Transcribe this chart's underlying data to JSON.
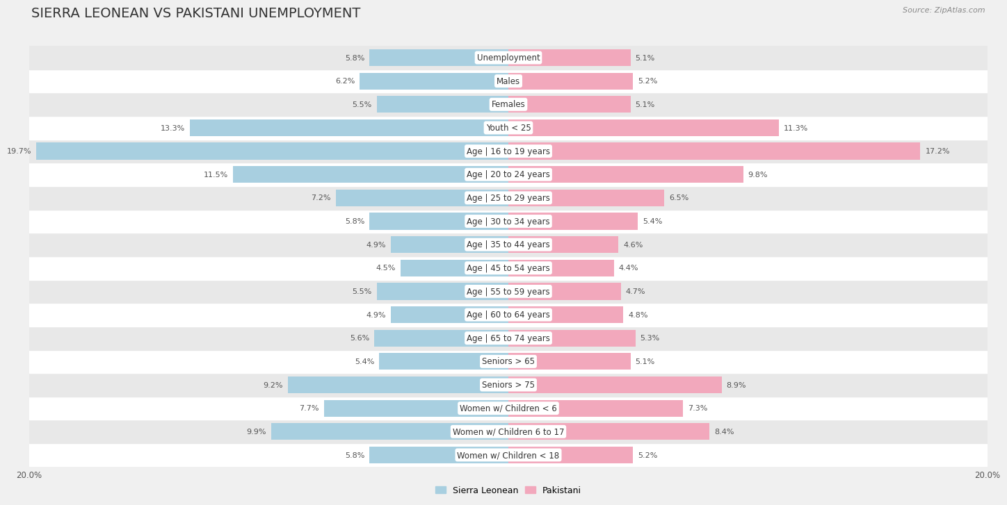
{
  "title": "SIERRA LEONEAN VS PAKISTANI UNEMPLOYMENT",
  "source": "Source: ZipAtlas.com",
  "categories": [
    "Unemployment",
    "Males",
    "Females",
    "Youth < 25",
    "Age | 16 to 19 years",
    "Age | 20 to 24 years",
    "Age | 25 to 29 years",
    "Age | 30 to 34 years",
    "Age | 35 to 44 years",
    "Age | 45 to 54 years",
    "Age | 55 to 59 years",
    "Age | 60 to 64 years",
    "Age | 65 to 74 years",
    "Seniors > 65",
    "Seniors > 75",
    "Women w/ Children < 6",
    "Women w/ Children 6 to 17",
    "Women w/ Children < 18"
  ],
  "sierra_leonean": [
    5.8,
    6.2,
    5.5,
    13.3,
    19.7,
    11.5,
    7.2,
    5.8,
    4.9,
    4.5,
    5.5,
    4.9,
    5.6,
    5.4,
    9.2,
    7.7,
    9.9,
    5.8
  ],
  "pakistani": [
    5.1,
    5.2,
    5.1,
    11.3,
    17.2,
    9.8,
    6.5,
    5.4,
    4.6,
    4.4,
    4.7,
    4.8,
    5.3,
    5.1,
    8.9,
    7.3,
    8.4,
    5.2
  ],
  "sl_color": "#a8cfe0",
  "pk_color": "#f2a8bc",
  "max_val": 20.0,
  "bar_height": 0.72,
  "bg_color": "#f0f0f0",
  "row_color_light": "#ffffff",
  "row_color_dark": "#e8e8e8",
  "title_fontsize": 14,
  "label_fontsize": 8.5,
  "value_fontsize": 8,
  "legend_fontsize": 9,
  "source_fontsize": 8
}
